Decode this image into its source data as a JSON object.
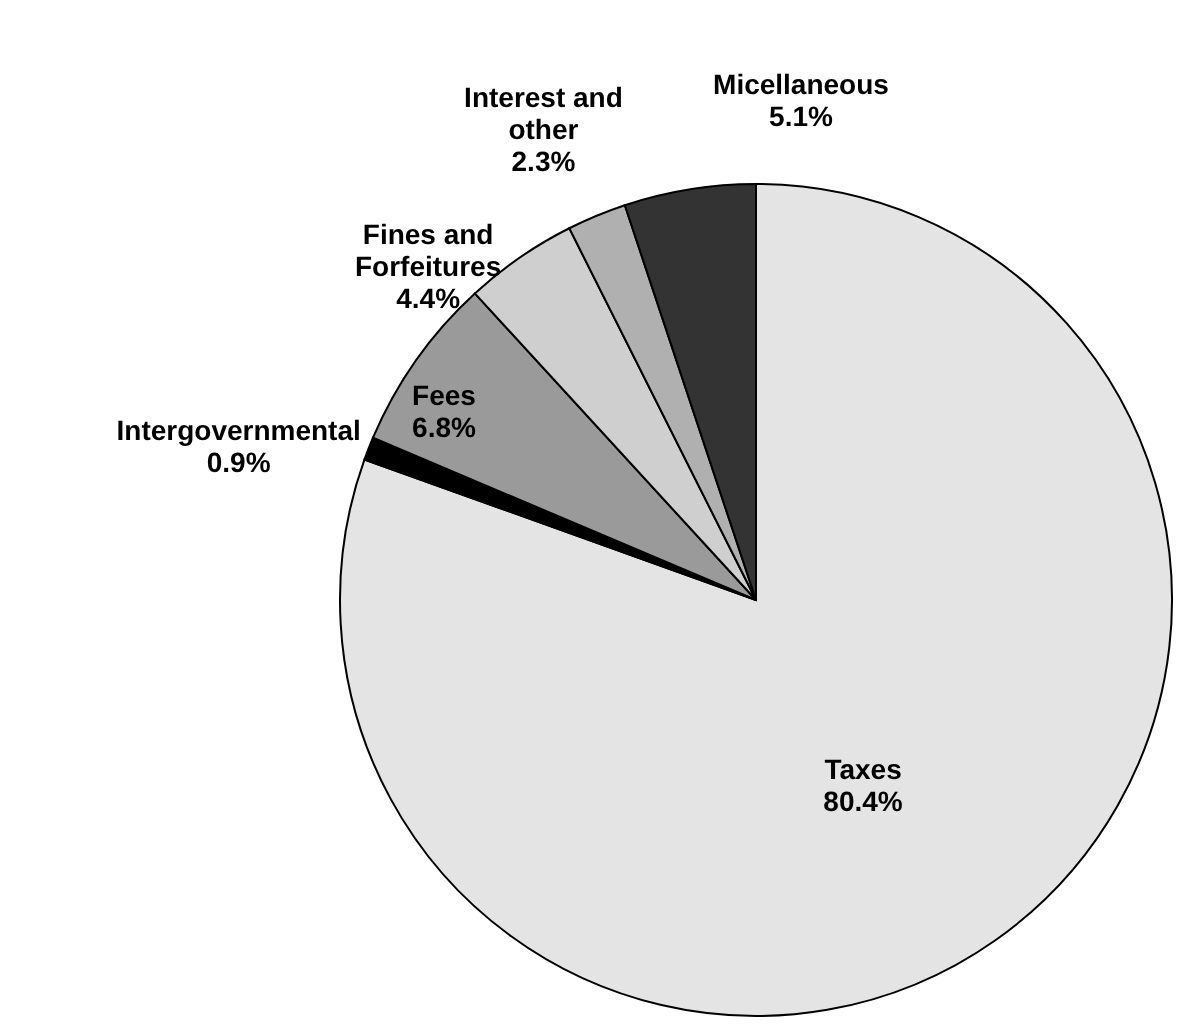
{
  "chart_data": {
    "type": "pie",
    "categories": [
      "Taxes",
      "Intergovernmental",
      "Fees",
      "Fines and Forfeitures",
      "Interest and other",
      "Micellaneous"
    ],
    "values": [
      80.4,
      0.9,
      6.8,
      4.4,
      2.3,
      5.1
    ],
    "value_labels": [
      "80.4%",
      "0.9%",
      "6.8%",
      "4.4%",
      "2.3%",
      "5.1%"
    ],
    "colors": [
      "#e4e4e4",
      "#000000",
      "#9a9a9a",
      "#cfcfcf",
      "#b0b0b0",
      "#333333"
    ],
    "legend": false
  }
}
